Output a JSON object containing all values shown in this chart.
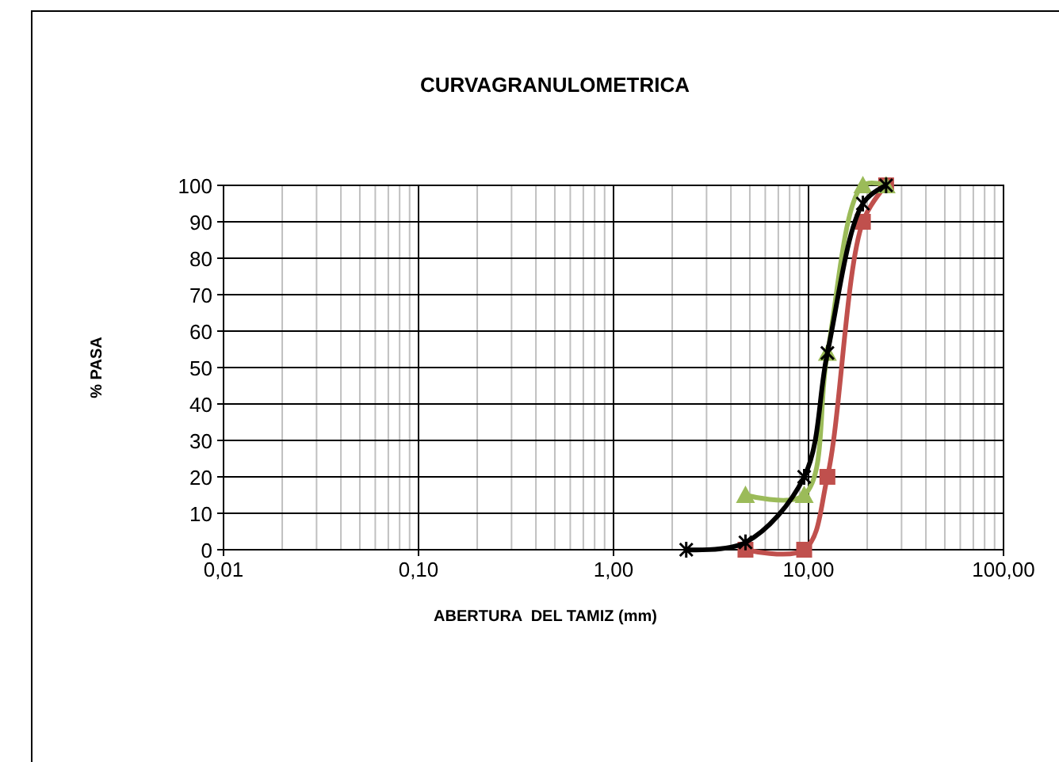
{
  "chart_data": {
    "type": "line",
    "title": "CURVAGRANULOMETRICA",
    "xlabel": "ABERTURA  DEL TAMIZ (mm)",
    "ylabel": "% PASA",
    "log": "x",
    "grid": true,
    "xlim": [
      0.01,
      100
    ],
    "xticks": [
      {
        "value": 0.01,
        "label": "0,01"
      },
      {
        "value": 0.1,
        "label": "0,10"
      },
      {
        "value": 1,
        "label": "1,00"
      },
      {
        "value": 10,
        "label": "10,00"
      },
      {
        "value": 100,
        "label": "100,00"
      }
    ],
    "ylim": [
      0,
      100
    ],
    "yticks": [
      0,
      10,
      20,
      30,
      40,
      50,
      60,
      70,
      80,
      90,
      100
    ],
    "series": [
      {
        "color": "#000000",
        "marker": "cross",
        "x": [
          2.36,
          4.75,
          9.5,
          12.5,
          19,
          25
        ],
        "values": [
          0,
          2,
          20,
          54,
          95,
          100
        ]
      },
      {
        "color": "#9bbb59",
        "marker": "triangle",
        "x": [
          4.75,
          9.5,
          12.5,
          19,
          25
        ],
        "values": [
          15,
          15,
          54,
          100,
          100
        ]
      },
      {
        "color": "#c0504d",
        "marker": "square",
        "x": [
          4.75,
          9.5,
          12.5,
          19,
          25
        ],
        "values": [
          0,
          0,
          20,
          90,
          100
        ]
      }
    ]
  }
}
